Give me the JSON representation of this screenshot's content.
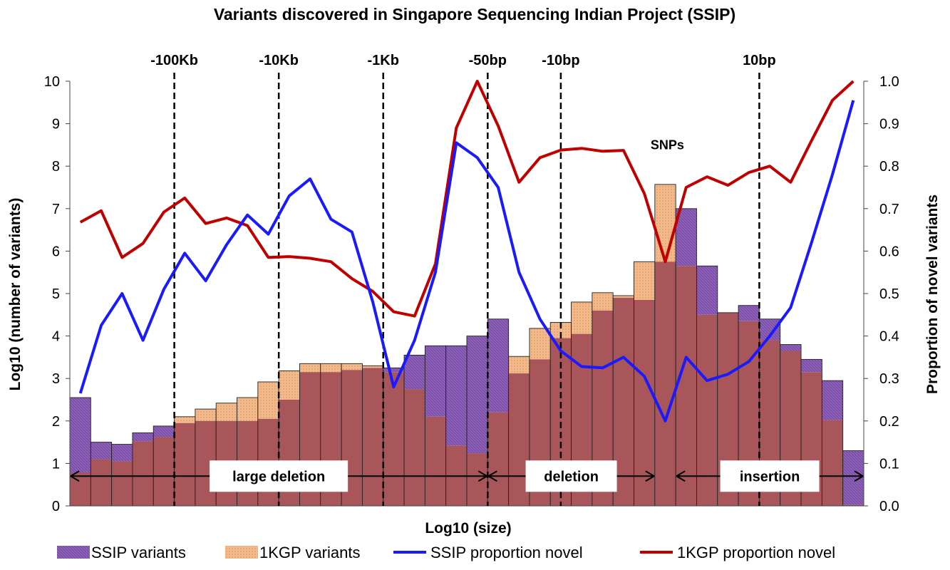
{
  "chart_data": {
    "type": "bar",
    "title": "Variants discovered in Singapore Sequencing Indian Project (SSIP)",
    "xlabel": "Log10 (size)",
    "ylabel_left": "Log10 (number of variants)",
    "ylabel_right": "Proportion of novel variants",
    "ylim_left": [
      0,
      10
    ],
    "ylim_right": [
      0,
      1
    ],
    "yticks_left": [
      "0",
      "1",
      "2",
      "3",
      "4",
      "5",
      "6",
      "7",
      "8",
      "9",
      "10"
    ],
    "yticks_right": [
      "0.0",
      "0.1",
      "0.2",
      "0.3",
      "0.4",
      "0.5",
      "0.6",
      "0.7",
      "0.8",
      "0.9",
      "1.0"
    ],
    "n_bins": 38,
    "series": [
      {
        "name": "SSIP variants",
        "kind": "bar",
        "color": "#7d4ea8",
        "values": [
          2.55,
          1.5,
          1.45,
          1.72,
          1.88,
          1.95,
          2.0,
          2.0,
          2.0,
          2.05,
          2.5,
          3.15,
          3.15,
          3.2,
          3.25,
          3.25,
          3.55,
          3.77,
          3.77,
          4.0,
          4.4,
          3.12,
          3.45,
          3.95,
          4.05,
          4.6,
          4.9,
          4.85,
          5.75,
          7.0,
          5.65,
          4.55,
          4.72,
          4.4,
          3.8,
          3.45,
          2.95,
          1.3
        ]
      },
      {
        "name": "1KGP variants",
        "kind": "bar",
        "color": "#f2b98a",
        "values": [
          0.78,
          1.1,
          1.05,
          1.52,
          1.62,
          2.1,
          2.28,
          2.42,
          2.55,
          2.92,
          3.18,
          3.35,
          3.35,
          3.35,
          3.3,
          3.15,
          2.75,
          2.1,
          1.42,
          1.24,
          2.2,
          3.52,
          4.18,
          4.32,
          4.8,
          5.02,
          4.95,
          5.75,
          7.57,
          5.65,
          4.5,
          4.55,
          4.35,
          3.9,
          3.65,
          3.15,
          2.02,
          0.02
        ]
      },
      {
        "name": "SSIP proportion novel",
        "kind": "line",
        "color": "#1a1aff",
        "values": [
          0.265,
          0.425,
          0.5,
          0.39,
          0.51,
          0.595,
          0.53,
          0.615,
          0.685,
          0.64,
          0.73,
          0.77,
          0.675,
          0.645,
          0.48,
          0.28,
          0.39,
          0.55,
          0.855,
          0.82,
          0.75,
          0.55,
          0.44,
          0.365,
          0.328,
          0.325,
          0.35,
          0.305,
          0.2,
          0.35,
          0.295,
          0.31,
          0.34,
          0.4,
          0.467,
          0.62,
          0.78,
          0.955
        ]
      },
      {
        "name": "1KGP proportion novel",
        "kind": "line",
        "color": "#c00000",
        "values": [
          0.668,
          0.695,
          0.585,
          0.618,
          0.692,
          0.725,
          0.665,
          0.678,
          0.66,
          0.585,
          0.587,
          0.583,
          0.575,
          0.535,
          0.505,
          0.457,
          0.447,
          0.57,
          0.89,
          1.0,
          0.895,
          0.762,
          0.82,
          0.838,
          0.842,
          0.835,
          0.837,
          0.735,
          0.575,
          0.75,
          0.775,
          0.755,
          0.785,
          0.8,
          0.762,
          0.86,
          0.955,
          1.0
        ]
      }
    ],
    "overlap_color": "#a85659",
    "vlines": [
      {
        "label": "-100Kb",
        "bin_edge": 5
      },
      {
        "label": "-10Kb",
        "bin_edge": 10
      },
      {
        "label": "-1Kb",
        "bin_edge": 15
      },
      {
        "label": "-50bp",
        "bin_edge": 20
      },
      {
        "label": "-10bp",
        "bin_edge": 23.5
      },
      {
        "label": "10bp",
        "bin_edge": 33
      }
    ],
    "regions": [
      {
        "label": "large deletion",
        "from": 0,
        "to": 20
      },
      {
        "label": "deletion",
        "from": 20,
        "to": 28
      },
      {
        "label": "insertion",
        "from": 29,
        "to": 38
      }
    ],
    "annotations": [
      {
        "text": "SNPs"
      }
    ],
    "legend_position": "bottom"
  }
}
